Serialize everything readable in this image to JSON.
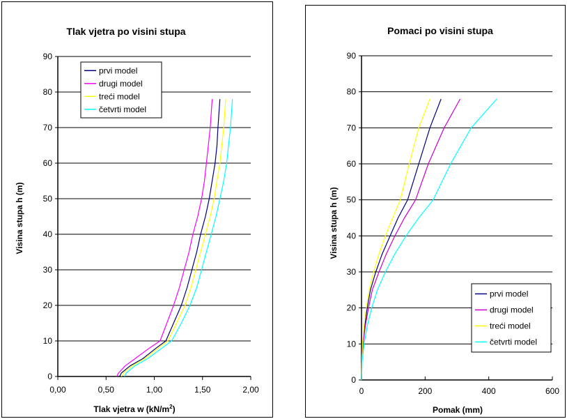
{
  "chart_data": [
    {
      "type": "line",
      "title": "Tlak vjetra po visini stupa",
      "xlabel": "Tlak vjetra  w (kN/m",
      "xlabel_sup": "2",
      "xlabel_suffix": ")",
      "ylabel": "Visina stupa  h (m)",
      "xlim": [
        0,
        2
      ],
      "ylim": [
        0,
        90
      ],
      "xticks": [
        "0,00",
        "0,50",
        "1,00",
        "1,50",
        "2,00"
      ],
      "xtick_values": [
        0,
        0.5,
        1,
        1.5,
        2
      ],
      "yticks": [
        "0",
        "10",
        "20",
        "30",
        "40",
        "50",
        "60",
        "70",
        "80",
        "90"
      ],
      "ytick_values": [
        0,
        10,
        20,
        30,
        40,
        50,
        60,
        70,
        80,
        90
      ],
      "grid": "horizontal",
      "legend_position": "top-left",
      "series": [
        {
          "name": "prvi model",
          "color": "#000080",
          "x": [
            0.64,
            0.66,
            0.75,
            0.88,
            1.02,
            1.12,
            1.2,
            1.28,
            1.34,
            1.39,
            1.44,
            1.48,
            1.53,
            1.57,
            1.6,
            1.63,
            1.65,
            1.66,
            1.68
          ],
          "y": [
            0,
            1,
            3,
            5,
            8,
            10,
            15,
            20,
            25,
            30,
            35,
            40,
            45,
            50,
            55,
            60,
            65,
            70,
            78
          ]
        },
        {
          "name": "drugi model",
          "color": "#FF00FF",
          "x": [
            0.61,
            0.63,
            0.7,
            0.8,
            0.95,
            1.06,
            1.13,
            1.2,
            1.26,
            1.31,
            1.36,
            1.4,
            1.45,
            1.49,
            1.52,
            1.54,
            1.56,
            1.58,
            1.6
          ],
          "y": [
            0,
            1,
            3,
            5,
            8,
            10,
            15,
            20,
            25,
            30,
            35,
            40,
            45,
            50,
            55,
            60,
            65,
            70,
            78
          ]
        },
        {
          "name": "treći model",
          "color": "#FFFF00",
          "x": [
            0.66,
            0.68,
            0.77,
            0.9,
            1.04,
            1.14,
            1.23,
            1.32,
            1.38,
            1.43,
            1.48,
            1.53,
            1.58,
            1.62,
            1.65,
            1.68,
            1.7,
            1.72,
            1.74
          ],
          "y": [
            0,
            1,
            3,
            5,
            8,
            10,
            15,
            20,
            25,
            30,
            35,
            40,
            45,
            50,
            55,
            60,
            65,
            70,
            78
          ]
        },
        {
          "name": "četvrti model",
          "color": "#00FFFF",
          "x": [
            0.69,
            0.71,
            0.8,
            0.93,
            1.08,
            1.18,
            1.28,
            1.37,
            1.44,
            1.49,
            1.54,
            1.59,
            1.64,
            1.68,
            1.72,
            1.75,
            1.77,
            1.79,
            1.81
          ],
          "y": [
            0,
            1,
            3,
            5,
            8,
            10,
            15,
            20,
            25,
            30,
            35,
            40,
            45,
            50,
            55,
            60,
            65,
            70,
            78
          ]
        }
      ]
    },
    {
      "type": "line",
      "title": "Pomaci po visini stupa",
      "xlabel": "Pomak (mm)",
      "ylabel": "Visina stupa  h (m)",
      "xlim": [
        0,
        600
      ],
      "ylim": [
        0,
        90
      ],
      "xticks": [
        "0",
        "200",
        "400",
        "600"
      ],
      "xtick_values": [
        0,
        200,
        400,
        600
      ],
      "yticks": [
        "0",
        "10",
        "20",
        "30",
        "40",
        "50",
        "60",
        "70",
        "80",
        "90"
      ],
      "ytick_values": [
        0,
        10,
        20,
        30,
        40,
        50,
        60,
        70,
        80,
        90
      ],
      "grid": "horizontal",
      "legend_position": "bottom-right",
      "series": [
        {
          "name": "prvi model",
          "color": "#000080",
          "x": [
            0,
            1,
            4,
            10,
            18,
            28,
            45,
            65,
            90,
            115,
            145,
            180,
            215,
            250
          ],
          "y": [
            0,
            5,
            10,
            15,
            20,
            25,
            30,
            35,
            40,
            45,
            50,
            60,
            70,
            78
          ]
        },
        {
          "name": "drugi model",
          "color": "#CC00CC",
          "x": [
            0,
            1,
            5,
            12,
            22,
            34,
            55,
            78,
            105,
            135,
            170,
            210,
            260,
            310
          ],
          "y": [
            0,
            5,
            10,
            15,
            20,
            25,
            30,
            35,
            40,
            45,
            50,
            60,
            70,
            78
          ]
        },
        {
          "name": "treći model",
          "color": "#FFFF00",
          "x": [
            0,
            1,
            3,
            8,
            15,
            24,
            38,
            55,
            75,
            98,
            122,
            150,
            180,
            215
          ],
          "y": [
            0,
            5,
            10,
            15,
            20,
            25,
            30,
            35,
            40,
            45,
            50,
            60,
            70,
            78
          ]
        },
        {
          "name": "četvrti model",
          "color": "#00FFFF",
          "x": [
            0,
            2,
            8,
            18,
            32,
            50,
            75,
            105,
            140,
            180,
            225,
            280,
            345,
            425
          ],
          "y": [
            0,
            5,
            10,
            15,
            20,
            25,
            30,
            35,
            40,
            45,
            50,
            60,
            70,
            78
          ]
        }
      ]
    }
  ]
}
